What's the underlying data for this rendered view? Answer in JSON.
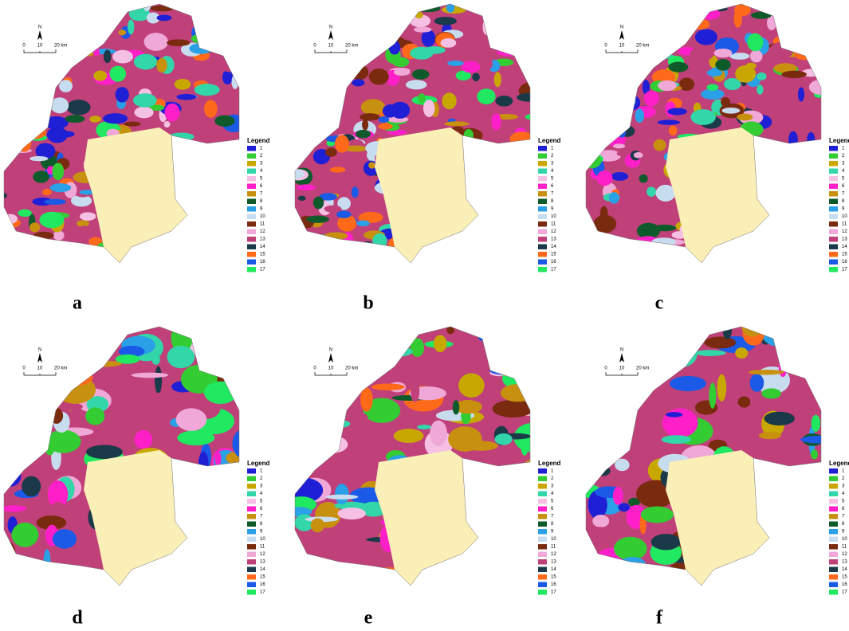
{
  "legend": {
    "title": "Legend",
    "items": [
      {
        "label": "1",
        "color": "#1f1fd6"
      },
      {
        "label": "2",
        "color": "#33cc33"
      },
      {
        "label": "3",
        "color": "#c8a800"
      },
      {
        "label": "4",
        "color": "#33d6a8"
      },
      {
        "label": "5",
        "color": "#f5c0e4"
      },
      {
        "label": "6",
        "color": "#ff1fc8"
      },
      {
        "label": "7",
        "color": "#c8900f"
      },
      {
        "label": "8",
        "color": "#0f5a2a"
      },
      {
        "label": "9",
        "color": "#2aa0e6"
      },
      {
        "label": "10",
        "color": "#c8dcf0"
      },
      {
        "label": "11",
        "color": "#7a2a0f"
      },
      {
        "label": "12",
        "color": "#f0a8d8"
      },
      {
        "label": "13",
        "color": "#c0407a"
      },
      {
        "label": "14",
        "color": "#1a3a4a"
      },
      {
        "label": "15",
        "color": "#ff6a1a"
      },
      {
        "label": "16",
        "color": "#1a5ae6"
      },
      {
        "label": "17",
        "color": "#20e860"
      }
    ]
  },
  "north": "N",
  "scale": {
    "labels": [
      "0",
      "10",
      "20 km"
    ]
  },
  "panels": [
    {
      "label": "a"
    },
    {
      "label": "b"
    },
    {
      "label": "c"
    },
    {
      "label": "d"
    },
    {
      "label": "e"
    },
    {
      "label": "f"
    }
  ]
}
